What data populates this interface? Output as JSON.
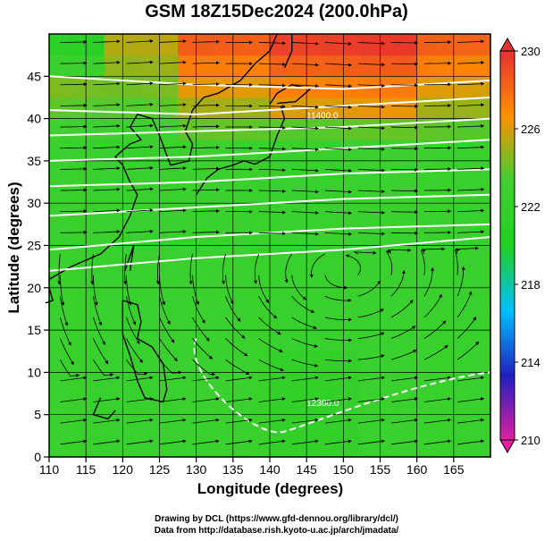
{
  "chart_data": {
    "type": "heatmap",
    "title": "GSM 18Z15Dec2024 (200.0hPa)",
    "xlabel": "Longitude (degrees)",
    "ylabel": "Latitude  (degrees)",
    "xlim": [
      110,
      170
    ],
    "ylim": [
      0,
      50
    ],
    "x_ticks": [
      110,
      115,
      120,
      125,
      130,
      135,
      140,
      145,
      150,
      155,
      160,
      165
    ],
    "y_ticks": [
      0,
      5,
      10,
      15,
      20,
      25,
      30,
      35,
      40,
      45
    ],
    "grid": true,
    "colorbar": {
      "min": 210,
      "max": 230,
      "ticks": [
        210,
        214,
        218,
        222,
        226,
        230
      ],
      "colors": [
        "#e020a0",
        "#2020c0",
        "#00c0ff",
        "#20d020",
        "#40d030",
        "#ff9000",
        "#e83030"
      ]
    },
    "contour_labels": [
      "11400.0",
      "12300.0"
    ],
    "overlay": "streamlines"
  },
  "credits": {
    "line1": "Drawing by DCL (https://www.gfd-dennou.org/library/dcl/)",
    "line2": "Data from http://database.rish.kyoto-u.ac.jp/arch/jmadata/"
  }
}
